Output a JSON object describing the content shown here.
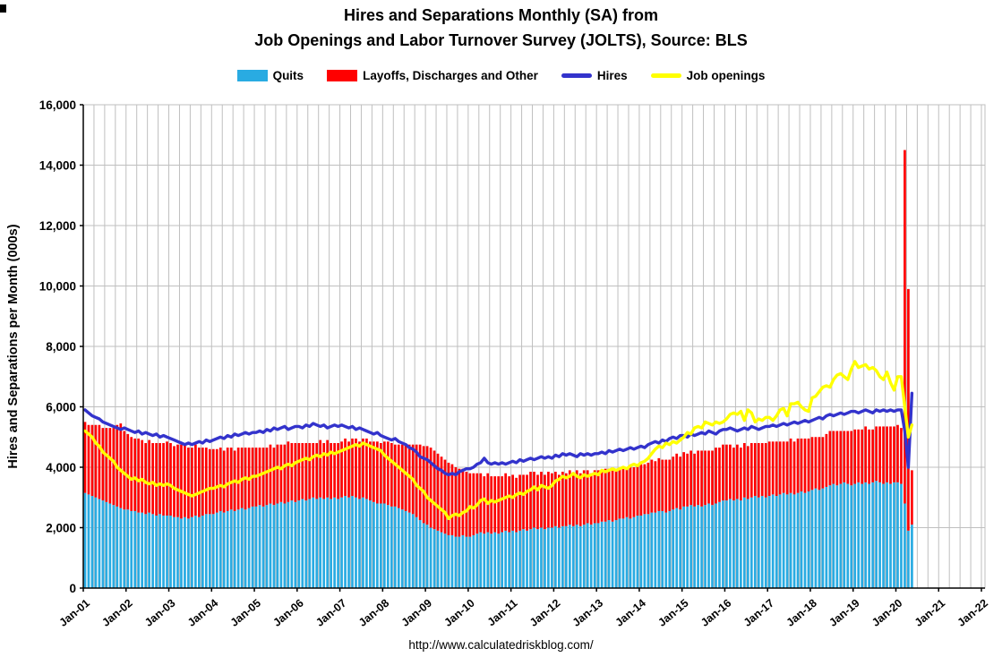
{
  "title": {
    "line1": "Hires and Separations Monthly (SA) from",
    "line2": "Job Openings and Labor Turnover Survey (JOLTS), Source: BLS"
  },
  "footer": {
    "url": "http://www.calculatedriskblog.com/"
  },
  "legend": {
    "items": [
      {
        "label": "Quits",
        "type": "bar",
        "color": "#29ABE2"
      },
      {
        "label": "Layoffs, Discharges and Other",
        "type": "bar",
        "color": "#FF0000"
      },
      {
        "label": "Hires",
        "type": "line",
        "color": "#3333CC"
      },
      {
        "label": "Job openings",
        "type": "line",
        "color": "#FFFF00"
      }
    ]
  },
  "chart_data": {
    "type": "composite",
    "subtype": "stacked-bars-with-lines",
    "title": "Hires and Separations Monthly (SA) from Job Openings and Labor Turnover Survey (JOLTS), Source: BLS",
    "x_start": "Jan-2001",
    "x_end": "May-2020",
    "frequency": "monthly",
    "x_axis": {
      "tick_labels": [
        "Jan-01",
        "Jan-02",
        "Jan-03",
        "Jan-04",
        "Jan-05",
        "Jan-06",
        "Jan-07",
        "Jan-08",
        "Jan-09",
        "Jan-10",
        "Jan-11",
        "Jan-12",
        "Jan-13",
        "Jan-14",
        "Jan-15",
        "Jan-16",
        "Jan-17",
        "Jan-18",
        "Jan-19",
        "Jan-20",
        "Jan-21",
        "Jan-22"
      ],
      "months_per_tick": 12,
      "total_slots": 253,
      "gridline_every_months": 3
    },
    "y_axis": {
      "title": "Hires and Separations per Month (000s)",
      "min": 0,
      "max": 16000,
      "tick_step": 2000,
      "tick_labels": [
        "0",
        "2,000",
        "4,000",
        "6,000",
        "8,000",
        "10,000",
        "12,000",
        "14,000",
        "16,000"
      ]
    },
    "colors": {
      "grid": "#BFBFBF",
      "axis": "#000000",
      "background": "#FFFFFF"
    },
    "series": [
      {
        "name": "Quits",
        "type": "bar",
        "stack": "separations",
        "color": "#29ABE2",
        "values": [
          3150,
          3100,
          3050,
          3000,
          2950,
          2900,
          2850,
          2800,
          2750,
          2700,
          2650,
          2600,
          2600,
          2550,
          2550,
          2500,
          2500,
          2450,
          2500,
          2450,
          2400,
          2450,
          2400,
          2400,
          2400,
          2350,
          2350,
          2300,
          2350,
          2300,
          2350,
          2400,
          2350,
          2400,
          2450,
          2450,
          2450,
          2500,
          2550,
          2500,
          2550,
          2600,
          2550,
          2600,
          2650,
          2600,
          2650,
          2700,
          2700,
          2750,
          2700,
          2750,
          2800,
          2750,
          2800,
          2850,
          2800,
          2850,
          2900,
          2850,
          2900,
          2950,
          2900,
          2950,
          3000,
          2950,
          3000,
          2950,
          3000,
          2950,
          3000,
          2950,
          3000,
          3050,
          3000,
          3050,
          3000,
          2950,
          3000,
          2950,
          2900,
          2850,
          2800,
          2800,
          2800,
          2750,
          2700,
          2700,
          2650,
          2600,
          2550,
          2500,
          2450,
          2350,
          2250,
          2150,
          2100,
          2000,
          1950,
          1900,
          1850,
          1800,
          1750,
          1750,
          1700,
          1700,
          1750,
          1700,
          1700,
          1750,
          1800,
          1850,
          1800,
          1850,
          1800,
          1850,
          1800,
          1850,
          1900,
          1850,
          1900,
          1850,
          1900,
          1950,
          1900,
          1950,
          2000,
          1950,
          2000,
          1950,
          2000,
          2000,
          2050,
          2000,
          2050,
          2050,
          2100,
          2050,
          2100,
          2050,
          2100,
          2150,
          2100,
          2150,
          2150,
          2200,
          2200,
          2250,
          2200,
          2250,
          2300,
          2300,
          2350,
          2300,
          2350,
          2400,
          2400,
          2450,
          2450,
          2500,
          2500,
          2550,
          2550,
          2500,
          2550,
          2600,
          2650,
          2600,
          2700,
          2700,
          2750,
          2700,
          2750,
          2700,
          2750,
          2800,
          2750,
          2800,
          2850,
          2900,
          2900,
          2950,
          2900,
          2950,
          2900,
          3000,
          2950,
          3000,
          3050,
          3000,
          3050,
          3000,
          3050,
          3100,
          3050,
          3100,
          3150,
          3100,
          3150,
          3100,
          3150,
          3200,
          3150,
          3200,
          3250,
          3300,
          3250,
          3300,
          3350,
          3400,
          3450,
          3400,
          3450,
          3500,
          3450,
          3400,
          3450,
          3500,
          3450,
          3500,
          3450,
          3500,
          3550,
          3500,
          3450,
          3500,
          3450,
          3500,
          3500,
          3450,
          2800,
          1900,
          2100
        ]
      },
      {
        "name": "Layoffs, Discharges and Other",
        "type": "bar",
        "stack": "separations",
        "color": "#FF0000",
        "values": [
          2350,
          2300,
          2350,
          2400,
          2450,
          2400,
          2450,
          2500,
          2550,
          2700,
          2800,
          2600,
          2500,
          2450,
          2400,
          2450,
          2400,
          2350,
          2400,
          2350,
          2400,
          2350,
          2400,
          2450,
          2400,
          2350,
          2400,
          2450,
          2400,
          2350,
          2300,
          2350,
          2300,
          2250,
          2200,
          2150,
          2150,
          2100,
          2100,
          2050,
          2100,
          2050,
          2000,
          2050,
          2000,
          2050,
          2000,
          1950,
          1950,
          1900,
          1950,
          1900,
          1950,
          1900,
          1950,
          1900,
          1950,
          2000,
          1900,
          1950,
          1900,
          1850,
          1900,
          1850,
          1800,
          1850,
          1900,
          1850,
          1900,
          1850,
          1800,
          1850,
          1850,
          1900,
          1850,
          1900,
          1950,
          1900,
          1950,
          2000,
          1950,
          2000,
          2050,
          2000,
          2050,
          2100,
          2100,
          2050,
          2100,
          2150,
          2200,
          2250,
          2300,
          2400,
          2500,
          2550,
          2600,
          2650,
          2600,
          2550,
          2500,
          2450,
          2400,
          2350,
          2300,
          2250,
          2200,
          2150,
          2100,
          2050,
          2000,
          1950,
          1900,
          1950,
          1900,
          1850,
          1900,
          1850,
          1900,
          1850,
          1850,
          1800,
          1850,
          1800,
          1850,
          1900,
          1850,
          1800,
          1850,
          1800,
          1850,
          1800,
          1800,
          1750,
          1800,
          1750,
          1800,
          1750,
          1800,
          1750,
          1800,
          1750,
          1700,
          1750,
          1750,
          1700,
          1750,
          1700,
          1750,
          1700,
          1650,
          1700,
          1650,
          1700,
          1650,
          1700,
          1700,
          1650,
          1700,
          1750,
          1700,
          1750,
          1700,
          1750,
          1700,
          1750,
          1800,
          1750,
          1800,
          1750,
          1800,
          1750,
          1800,
          1850,
          1800,
          1750,
          1800,
          1850,
          1800,
          1850,
          1850,
          1800,
          1750,
          1800,
          1750,
          1800,
          1750,
          1800,
          1750,
          1800,
          1750,
          1800,
          1800,
          1750,
          1800,
          1750,
          1700,
          1750,
          1800,
          1750,
          1800,
          1750,
          1800,
          1750,
          1750,
          1700,
          1750,
          1700,
          1750,
          1800,
          1750,
          1800,
          1750,
          1700,
          1750,
          1800,
          1800,
          1750,
          1800,
          1850,
          1800,
          1750,
          1800,
          1850,
          1900,
          1850,
          1900,
          1850,
          1900,
          1850,
          11700,
          8000,
          1800
        ]
      },
      {
        "name": "Hires",
        "type": "line",
        "color": "#3333CC",
        "values": [
          5900,
          5800,
          5700,
          5650,
          5600,
          5500,
          5450,
          5400,
          5350,
          5300,
          5250,
          5300,
          5250,
          5200,
          5150,
          5200,
          5100,
          5150,
          5100,
          5050,
          5100,
          5000,
          5050,
          5000,
          4950,
          4900,
          4850,
          4800,
          4750,
          4800,
          4750,
          4800,
          4850,
          4800,
          4900,
          4850,
          4900,
          4950,
          5000,
          4950,
          5050,
          5000,
          5100,
          5050,
          5100,
          5150,
          5100,
          5150,
          5150,
          5200,
          5150,
          5250,
          5200,
          5300,
          5250,
          5300,
          5350,
          5250,
          5300,
          5350,
          5350,
          5300,
          5400,
          5350,
          5450,
          5400,
          5350,
          5400,
          5300,
          5350,
          5400,
          5350,
          5400,
          5350,
          5300,
          5350,
          5250,
          5300,
          5250,
          5200,
          5150,
          5100,
          5150,
          5050,
          5000,
          4950,
          4900,
          4950,
          4850,
          4800,
          4750,
          4650,
          4600,
          4500,
          4350,
          4300,
          4250,
          4150,
          4050,
          3950,
          3900,
          3800,
          3750,
          3800,
          3750,
          3850,
          3900,
          3950,
          3950,
          4000,
          4100,
          4150,
          4300,
          4150,
          4100,
          4150,
          4100,
          4150,
          4100,
          4150,
          4200,
          4150,
          4250,
          4200,
          4250,
          4300,
          4250,
          4300,
          4350,
          4300,
          4350,
          4300,
          4400,
          4350,
          4450,
          4400,
          4450,
          4400,
          4350,
          4450,
          4400,
          4450,
          4400,
          4450,
          4450,
          4500,
          4450,
          4550,
          4500,
          4550,
          4600,
          4550,
          4600,
          4650,
          4600,
          4650,
          4700,
          4650,
          4750,
          4800,
          4850,
          4800,
          4900,
          4850,
          4950,
          5000,
          4950,
          5050,
          5050,
          5000,
          5100,
          5050,
          5100,
          5150,
          5100,
          5200,
          5150,
          5100,
          5200,
          5250,
          5250,
          5300,
          5250,
          5200,
          5250,
          5300,
          5250,
          5350,
          5300,
          5250,
          5300,
          5350,
          5350,
          5400,
          5350,
          5400,
          5450,
          5400,
          5450,
          5500,
          5450,
          5500,
          5550,
          5500,
          5550,
          5600,
          5650,
          5600,
          5700,
          5750,
          5700,
          5750,
          5800,
          5750,
          5800,
          5850,
          5850,
          5800,
          5850,
          5900,
          5850,
          5800,
          5900,
          5850,
          5900,
          5850,
          5900,
          5850,
          5900,
          5900,
          5200,
          4000,
          6450
        ]
      },
      {
        "name": "Job openings",
        "type": "line",
        "color": "#FFFF00",
        "values": [
          5200,
          5100,
          5000,
          4800,
          4700,
          4500,
          4400,
          4300,
          4200,
          4000,
          3900,
          3800,
          3700,
          3600,
          3650,
          3550,
          3600,
          3500,
          3450,
          3500,
          3400,
          3450,
          3400,
          3450,
          3400,
          3300,
          3250,
          3200,
          3150,
          3100,
          3050,
          3100,
          3150,
          3200,
          3250,
          3300,
          3300,
          3350,
          3400,
          3350,
          3450,
          3500,
          3550,
          3500,
          3600,
          3650,
          3600,
          3700,
          3700,
          3750,
          3800,
          3850,
          3900,
          3950,
          4000,
          3950,
          4050,
          4100,
          4050,
          4150,
          4200,
          4250,
          4300,
          4250,
          4350,
          4400,
          4350,
          4450,
          4400,
          4500,
          4450,
          4500,
          4550,
          4600,
          4650,
          4700,
          4750,
          4700,
          4800,
          4750,
          4700,
          4650,
          4600,
          4550,
          4400,
          4300,
          4200,
          4100,
          4000,
          3900,
          3800,
          3700,
          3600,
          3400,
          3300,
          3200,
          3000,
          2900,
          2800,
          2700,
          2600,
          2500,
          2300,
          2400,
          2450,
          2400,
          2500,
          2550,
          2700,
          2650,
          2750,
          2900,
          2950,
          2800,
          2900,
          2850,
          2900,
          2950,
          3000,
          3050,
          3000,
          3100,
          3150,
          3100,
          3200,
          3250,
          3350,
          3250,
          3400,
          3350,
          3300,
          3400,
          3550,
          3600,
          3700,
          3650,
          3700,
          3800,
          3700,
          3650,
          3750,
          3700,
          3750,
          3800,
          3750,
          3900,
          3850,
          3900,
          3950,
          3900,
          3950,
          4000,
          3950,
          4050,
          4100,
          4050,
          4150,
          4200,
          4300,
          4450,
          4600,
          4700,
          4650,
          4800,
          4750,
          4850,
          4800,
          4900,
          5000,
          5150,
          5100,
          5300,
          5350,
          5300,
          5500,
          5450,
          5400,
          5500,
          5450,
          5500,
          5600,
          5750,
          5800,
          5750,
          5850,
          5550,
          5900,
          5800,
          5500,
          5600,
          5550,
          5650,
          5650,
          5550,
          5700,
          5900,
          5950,
          5700,
          6100,
          6100,
          6150,
          6000,
          5900,
          5850,
          6300,
          6350,
          6500,
          6650,
          6700,
          6650,
          6900,
          7050,
          7100,
          7000,
          6900,
          7250,
          7500,
          7300,
          7350,
          7400,
          7250,
          7300,
          7200,
          7000,
          6900,
          7150,
          6800,
          6550,
          7000,
          7000,
          6000,
          5000,
          5400
        ]
      }
    ]
  }
}
